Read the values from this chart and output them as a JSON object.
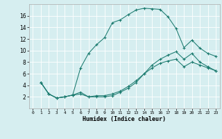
{
  "xlabel": "Humidex (Indice chaleur)",
  "background_color": "#d6eef0",
  "grid_color": "#b8d8dc",
  "line_color": "#1a7a6e",
  "xlim": [
    -0.5,
    23.5
  ],
  "ylim": [
    0,
    18
  ],
  "xticks": [
    0,
    1,
    2,
    3,
    4,
    5,
    6,
    7,
    8,
    9,
    10,
    11,
    12,
    13,
    14,
    15,
    16,
    17,
    18,
    19,
    20,
    21,
    22,
    23
  ],
  "yticks": [
    2,
    4,
    6,
    8,
    10,
    12,
    14,
    16
  ],
  "curve1_x": [
    1,
    2,
    3,
    4,
    5,
    6,
    7,
    8,
    9,
    10,
    11,
    12,
    13,
    14,
    15,
    16,
    17,
    18,
    19,
    20,
    21,
    22,
    23
  ],
  "curve1_y": [
    4.5,
    2.5,
    1.8,
    2.0,
    2.3,
    7.0,
    9.5,
    11.0,
    12.2,
    14.8,
    15.3,
    16.2,
    17.0,
    17.3,
    17.2,
    17.1,
    15.8,
    13.8,
    10.5,
    11.8,
    10.4,
    9.5,
    9.0
  ],
  "curve2_x": [
    1,
    2,
    3,
    4,
    5,
    6,
    7,
    8,
    9,
    10,
    11,
    12,
    13,
    14,
    15,
    16,
    17,
    18,
    19,
    20,
    21,
    22,
    23
  ],
  "curve2_y": [
    4.5,
    2.5,
    1.8,
    2.0,
    2.3,
    2.5,
    2.0,
    2.0,
    2.0,
    2.2,
    2.8,
    3.5,
    4.5,
    6.0,
    7.5,
    8.5,
    9.2,
    9.8,
    8.5,
    9.5,
    8.0,
    7.2,
    6.5
  ],
  "curve3_x": [
    1,
    2,
    3,
    4,
    5,
    6,
    7,
    8,
    9,
    10,
    11,
    12,
    13,
    14,
    15,
    16,
    17,
    18,
    19,
    20,
    21,
    22,
    23
  ],
  "curve3_y": [
    4.5,
    2.5,
    1.8,
    2.0,
    2.3,
    2.8,
    2.0,
    2.2,
    2.2,
    2.5,
    3.0,
    3.8,
    4.8,
    6.0,
    7.0,
    7.8,
    8.2,
    8.5,
    7.2,
    8.0,
    7.5,
    7.0,
    6.5
  ]
}
